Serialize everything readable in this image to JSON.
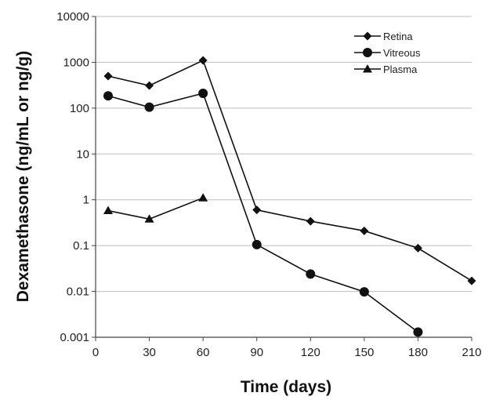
{
  "chart_data": {
    "type": "line",
    "xlabel": "Time (days)",
    "ylabel": "Dexamethasone (ng/mL or ng/g)",
    "xlim": [
      0,
      210
    ],
    "ylim": [
      0.001,
      10000
    ],
    "yscale": "log",
    "x_ticks": [
      0,
      30,
      60,
      90,
      120,
      150,
      180,
      210
    ],
    "x_tick_labels": [
      "0",
      "30",
      "60",
      "90",
      "120",
      "150",
      "180",
      "210"
    ],
    "y_ticks": [
      0.001,
      0.01,
      0.1,
      1,
      10,
      100,
      1000,
      10000
    ],
    "y_tick_labels": [
      "0.001",
      "0.01",
      "0.1",
      "1",
      "10",
      "100",
      "1000",
      "10000"
    ],
    "grid": "horizontal",
    "legend_position": "top-right",
    "series": [
      {
        "name": "Retina",
        "marker": "diamond",
        "x": [
          7,
          30,
          60,
          90,
          120,
          150,
          180,
          210
        ],
        "y": [
          500,
          310,
          1100,
          0.6,
          0.34,
          0.21,
          0.088,
          0.017
        ]
      },
      {
        "name": "Vitreous",
        "marker": "circle",
        "x": [
          7,
          30,
          60,
          90,
          120,
          150,
          180
        ],
        "y": [
          185,
          105,
          210,
          0.105,
          0.024,
          0.0098,
          0.0013
        ]
      },
      {
        "name": "Plasma",
        "marker": "triangle",
        "x": [
          7,
          30,
          60
        ],
        "y": [
          0.58,
          0.38,
          1.1
        ]
      }
    ]
  }
}
